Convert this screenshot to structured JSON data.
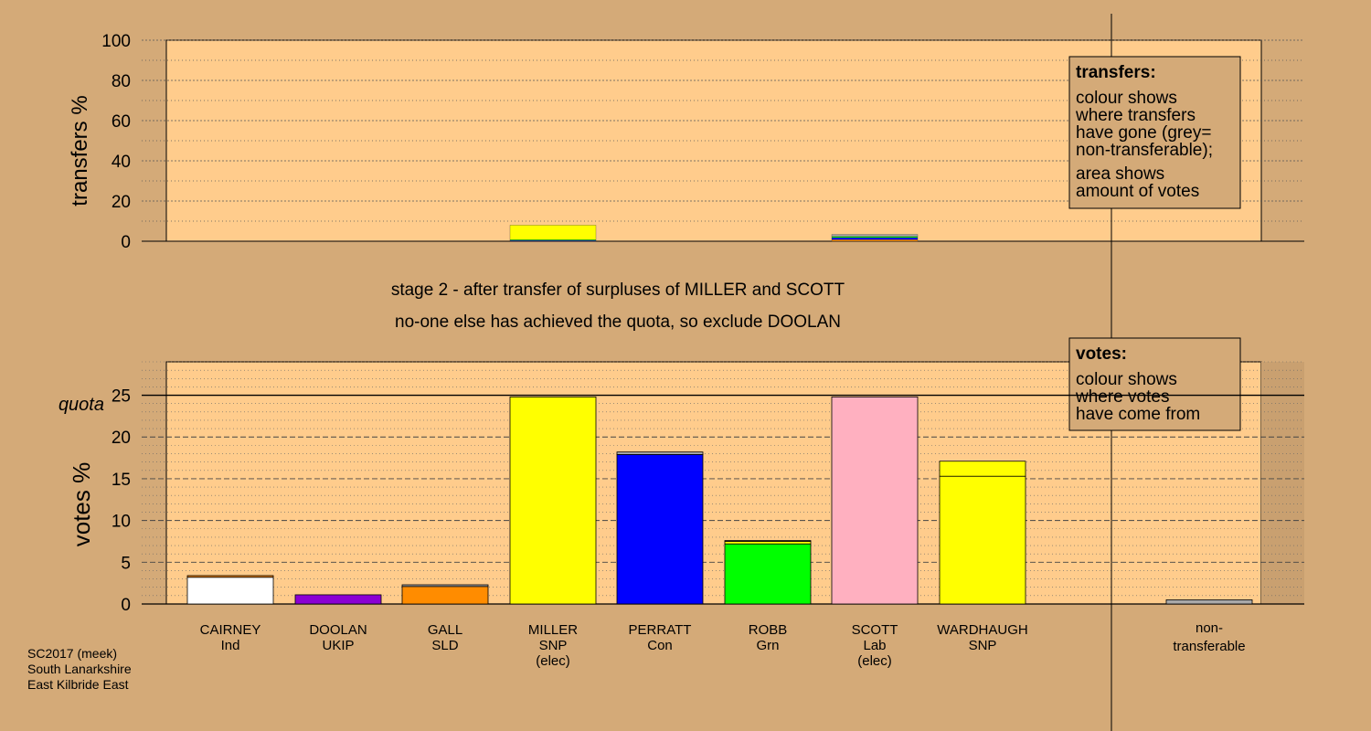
{
  "chart_data": [
    {
      "type": "bar",
      "ylabel": "transfers %",
      "ylim": [
        0,
        100
      ],
      "yticks": [
        0,
        20,
        40,
        60,
        80,
        100
      ],
      "categories": [
        "CAIRNEY",
        "DOOLAN",
        "GALL",
        "MILLER",
        "PERRATT",
        "ROBB",
        "SCOTT",
        "WARDHAUGH",
        "non-transferable"
      ],
      "stacked_segments": {
        "MILLER": [
          {
            "value": 0.4,
            "color": "#0000ff"
          },
          {
            "value": 0.4,
            "color": "#00ff00"
          },
          {
            "value": 7.2,
            "color": "#ffff00"
          }
        ],
        "SCOTT": [
          {
            "value": 0.8,
            "color": "#ff8c00"
          },
          {
            "value": 1.0,
            "color": "#0000ff"
          },
          {
            "value": 0.6,
            "color": "#00ff00"
          },
          {
            "value": 1.0,
            "color": "#a9a9a9"
          }
        ]
      },
      "legend": {
        "title": "transfers:",
        "lines": [
          "colour shows",
          "where transfers",
          "have gone (grey=",
          "non-transferable);",
          "area shows",
          "amount of votes"
        ]
      },
      "grid": true
    },
    {
      "type": "bar",
      "ylabel": "votes %",
      "ylim": [
        0,
        29
      ],
      "yticks": [
        0,
        5,
        10,
        15,
        20,
        25
      ],
      "quota": 25,
      "quota_label": "quota",
      "candidates": [
        {
          "name": "CAIRNEY",
          "party": "Ind",
          "note": "",
          "segments": [
            {
              "value": 3.2,
              "color": "#ffffff"
            },
            {
              "value": 0.2,
              "color": "#ff8c00"
            }
          ]
        },
        {
          "name": "DOOLAN",
          "party": "UKIP",
          "note": "",
          "segments": [
            {
              "value": 1.1,
              "color": "#8b00d4"
            }
          ]
        },
        {
          "name": "GALL",
          "party": "SLD",
          "note": "",
          "segments": [
            {
              "value": 2.1,
              "color": "#ff8c00"
            },
            {
              "value": 0.2,
              "color": "#a9a9a9"
            }
          ]
        },
        {
          "name": "MILLER",
          "party": "SNP",
          "note": "(elec)",
          "segments": [
            {
              "value": 24.8,
              "color": "#ffff00"
            }
          ]
        },
        {
          "name": "PERRATT",
          "party": "Con",
          "note": "",
          "segments": [
            {
              "value": 17.9,
              "color": "#0000ff"
            },
            {
              "value": 0.3,
              "color": "#a9a9a9"
            }
          ]
        },
        {
          "name": "ROBB",
          "party": "Grn",
          "note": "",
          "segments": [
            {
              "value": 7.2,
              "color": "#00ff00"
            },
            {
              "value": 0.3,
              "color": "#ffff00"
            },
            {
              "value": 0.1,
              "color": "#a9a9a9"
            }
          ]
        },
        {
          "name": "SCOTT",
          "party": "Lab",
          "note": "(elec)",
          "segments": [
            {
              "value": 24.8,
              "color": "#ffb0c0"
            }
          ]
        },
        {
          "name": "WARDHAUGH",
          "party": "SNP",
          "note": "",
          "segments": [
            {
              "value": 15.3,
              "color": "#ffff00"
            },
            {
              "value": 1.8,
              "color": "#ffff00"
            }
          ]
        }
      ],
      "nontransferable": {
        "label_1": "non-",
        "label_2": "transferable",
        "value": 0.5,
        "color": "#a9a9a9"
      },
      "legend": {
        "title": "votes:",
        "lines": [
          "colour shows",
          "where votes",
          "have come from"
        ]
      },
      "grid": true
    }
  ],
  "captions": {
    "line1": "stage 2 - after transfer of surpluses of MILLER and SCOTT",
    "line2": "no-one else has achieved the quota, so exclude DOOLAN"
  },
  "footer": {
    "line1": "SC2017 (meek)",
    "line2": "South Lanarkshire",
    "line3": "East Kilbride East"
  }
}
